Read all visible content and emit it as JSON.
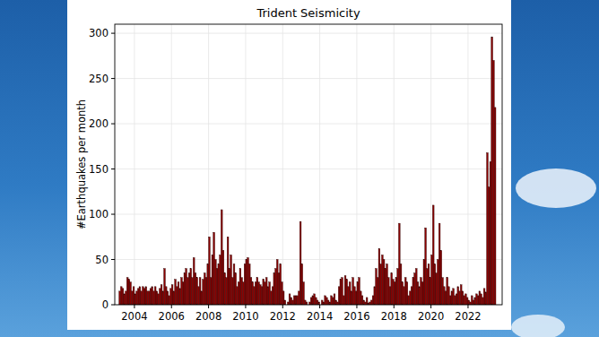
{
  "chart_data": {
    "type": "bar",
    "title": "Trident Seismicity",
    "y_label": "#Earthquakes per month",
    "color": "#8b0000",
    "grid": true,
    "xlim": [
      2002.94,
      2023.84
    ],
    "xticks": [
      2004,
      2006,
      2008,
      2010,
      2012,
      2014,
      2016,
      2018,
      2020,
      2022
    ],
    "ylim": [
      0,
      310
    ],
    "yticks": [
      0,
      50,
      100,
      150,
      200,
      250,
      300
    ],
    "x": [
      2003.167,
      2003.25,
      2003.333,
      2003.417,
      2003.5,
      2003.583,
      2003.667,
      2003.75,
      2003.833,
      2003.917,
      2004,
      2004.083,
      2004.167,
      2004.25,
      2004.333,
      2004.417,
      2004.5,
      2004.583,
      2004.667,
      2004.75,
      2004.833,
      2004.917,
      2005,
      2005.083,
      2005.167,
      2005.25,
      2005.333,
      2005.417,
      2005.5,
      2005.583,
      2005.667,
      2005.75,
      2005.833,
      2005.917,
      2006,
      2006.083,
      2006.167,
      2006.25,
      2006.333,
      2006.417,
      2006.5,
      2006.583,
      2006.667,
      2006.75,
      2006.833,
      2006.917,
      2007,
      2007.083,
      2007.167,
      2007.25,
      2007.333,
      2007.417,
      2007.5,
      2007.583,
      2007.667,
      2007.75,
      2007.833,
      2007.917,
      2008,
      2008.083,
      2008.167,
      2008.25,
      2008.333,
      2008.417,
      2008.5,
      2008.583,
      2008.667,
      2008.75,
      2008.833,
      2008.917,
      2009,
      2009.083,
      2009.167,
      2009.25,
      2009.333,
      2009.417,
      2009.5,
      2009.583,
      2009.667,
      2009.75,
      2009.833,
      2009.917,
      2010,
      2010.083,
      2010.167,
      2010.25,
      2010.333,
      2010.417,
      2010.5,
      2010.583,
      2010.667,
      2010.75,
      2010.833,
      2010.917,
      2011,
      2011.083,
      2011.167,
      2011.25,
      2011.333,
      2011.417,
      2011.5,
      2011.583,
      2011.667,
      2011.75,
      2011.833,
      2011.917,
      2012,
      2012.083,
      2012.167,
      2012.25,
      2012.333,
      2012.417,
      2012.5,
      2012.583,
      2012.667,
      2012.75,
      2012.833,
      2012.917,
      2013,
      2013.083,
      2013.167,
      2013.25,
      2013.333,
      2013.417,
      2013.5,
      2013.583,
      2013.667,
      2013.75,
      2013.833,
      2013.917,
      2014,
      2014.083,
      2014.167,
      2014.25,
      2014.333,
      2014.417,
      2014.5,
      2014.583,
      2014.667,
      2014.75,
      2014.833,
      2014.917,
      2015,
      2015.083,
      2015.167,
      2015.25,
      2015.333,
      2015.417,
      2015.5,
      2015.583,
      2015.667,
      2015.75,
      2015.833,
      2015.917,
      2016,
      2016.083,
      2016.167,
      2016.25,
      2016.333,
      2016.417,
      2016.5,
      2016.583,
      2016.667,
      2016.75,
      2016.833,
      2016.917,
      2017,
      2017.083,
      2017.167,
      2017.25,
      2017.333,
      2017.417,
      2017.5,
      2017.583,
      2017.667,
      2017.75,
      2017.833,
      2017.917,
      2018,
      2018.083,
      2018.167,
      2018.25,
      2018.333,
      2018.417,
      2018.5,
      2018.583,
      2018.667,
      2018.75,
      2018.833,
      2018.917,
      2019,
      2019.083,
      2019.167,
      2019.25,
      2019.333,
      2019.417,
      2019.5,
      2019.583,
      2019.667,
      2019.75,
      2019.833,
      2019.917,
      2020,
      2020.083,
      2020.167,
      2020.25,
      2020.333,
      2020.417,
      2020.5,
      2020.583,
      2020.667,
      2020.75,
      2020.833,
      2020.917,
      2021,
      2021.083,
      2021.167,
      2021.25,
      2021.333,
      2021.417,
      2021.5,
      2021.583,
      2021.667,
      2021.75,
      2021.833,
      2021.917,
      2022,
      2022.083,
      2022.167,
      2022.25,
      2022.333,
      2022.417,
      2022.5,
      2022.583,
      2022.667,
      2022.75,
      2022.833,
      2022.917,
      2023,
      2023.083,
      2023.167,
      2023.25,
      2023.333,
      2023.417
    ],
    "values": [
      15,
      20,
      18,
      12,
      15,
      30,
      28,
      25,
      15,
      20,
      12,
      15,
      18,
      20,
      15,
      20,
      18,
      20,
      15,
      15,
      18,
      20,
      15,
      20,
      15,
      12,
      18,
      22,
      15,
      40,
      20,
      15,
      10,
      18,
      22,
      15,
      28,
      20,
      25,
      18,
      30,
      25,
      35,
      40,
      30,
      35,
      40,
      30,
      52,
      35,
      30,
      20,
      30,
      15,
      28,
      35,
      30,
      45,
      75,
      30,
      55,
      80,
      50,
      40,
      45,
      55,
      105,
      60,
      35,
      30,
      75,
      40,
      55,
      30,
      45,
      35,
      20,
      25,
      40,
      30,
      25,
      45,
      50,
      52,
      45,
      30,
      25,
      20,
      25,
      30,
      25,
      22,
      20,
      28,
      25,
      30,
      20,
      25,
      15,
      20,
      35,
      40,
      50,
      35,
      45,
      25,
      15,
      5,
      0,
      3,
      12,
      8,
      5,
      10,
      10,
      10,
      15,
      92,
      45,
      25,
      5,
      3,
      0,
      3,
      8,
      10,
      12,
      8,
      5,
      3,
      0,
      5,
      3,
      10,
      8,
      5,
      3,
      10,
      8,
      12,
      5,
      3,
      20,
      28,
      30,
      10,
      32,
      28,
      20,
      25,
      15,
      30,
      20,
      15,
      25,
      30,
      15,
      10,
      5,
      3,
      8,
      2,
      3,
      5,
      10,
      20,
      40,
      30,
      62,
      45,
      55,
      50,
      40,
      45,
      30,
      20,
      35,
      28,
      25,
      30,
      40,
      90,
      45,
      25,
      20,
      30,
      25,
      10,
      15,
      20,
      30,
      35,
      40,
      25,
      20,
      30,
      25,
      50,
      85,
      40,
      45,
      30,
      55,
      110,
      45,
      35,
      50,
      90,
      60,
      30,
      20,
      15,
      30,
      20,
      10,
      15,
      18,
      10,
      12,
      20,
      15,
      22,
      15,
      10,
      12,
      8,
      5,
      3,
      10,
      5,
      8,
      12,
      10,
      15,
      12,
      8,
      18,
      14,
      168,
      130,
      158,
      296,
      270,
      218
    ]
  }
}
